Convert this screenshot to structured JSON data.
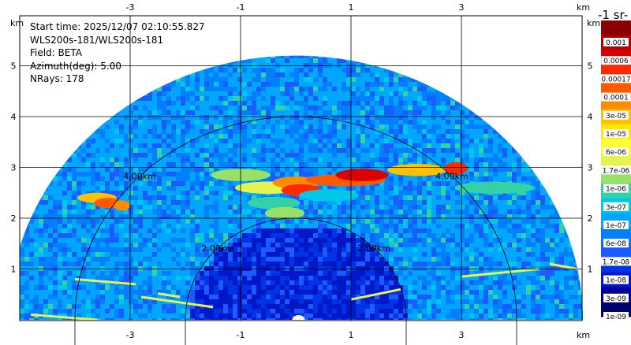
{
  "chart_data": {
    "type": "heatmap",
    "subtype": "ppi-sector",
    "info": {
      "start_time": "Start time: 2025/12/07 02:10:55.827",
      "source": "WLS200s-181/WLS200s-181",
      "field": "Field: BETA",
      "azimuth": "Azimuth(deg): 5.00",
      "nrays": "NRays: 178"
    },
    "units_label": "km",
    "x_range": [
      -5.25,
      5.25
    ],
    "y_range": [
      0,
      5.9
    ],
    "x_ticks": [
      -3,
      -1,
      1,
      3
    ],
    "y_ticks": [
      1,
      2,
      3,
      4,
      5
    ],
    "range_rings": [
      {
        "radius_km": 2,
        "label": "2.00km"
      },
      {
        "radius_km": 4,
        "label": "4.00km"
      }
    ],
    "max_range_km": 5.2,
    "colorbar": {
      "title": "-1 sr-",
      "ticks": [
        "0.001",
        "0.0006",
        "0.00017",
        "0.0001",
        "3e-05",
        "1e-05",
        "6e-06",
        "1.7e-06",
        "1e-06",
        "3e-07",
        "1e-07",
        "6e-08",
        "1.7e-08",
        "1e-08",
        "3e-09",
        "1e-09"
      ],
      "colors": [
        "#8b0000",
        "#b30000",
        "#dd0000",
        "#ff2a00",
        "#ff5a00",
        "#ff8c00",
        "#ffc000",
        "#ffe600",
        "#ffff33",
        "#e6f24d",
        "#99e066",
        "#33d1a6",
        "#00c8e6",
        "#00a6ff",
        "#0080ff",
        "#1a5cff",
        "#0033e6",
        "#0018c8",
        "#0000a0",
        "#00006e"
      ]
    },
    "features": [
      {
        "name": "upper layer",
        "min_km": 2.6,
        "max_km": 3.2,
        "level": "1e-05 to 1e-04"
      },
      {
        "name": "left patch",
        "x_km": -3.5,
        "y_km": 2.3,
        "level": "~3e-05"
      },
      {
        "name": "low streaks",
        "y_km": 0.3,
        "level": "~1e-06"
      }
    ]
  }
}
